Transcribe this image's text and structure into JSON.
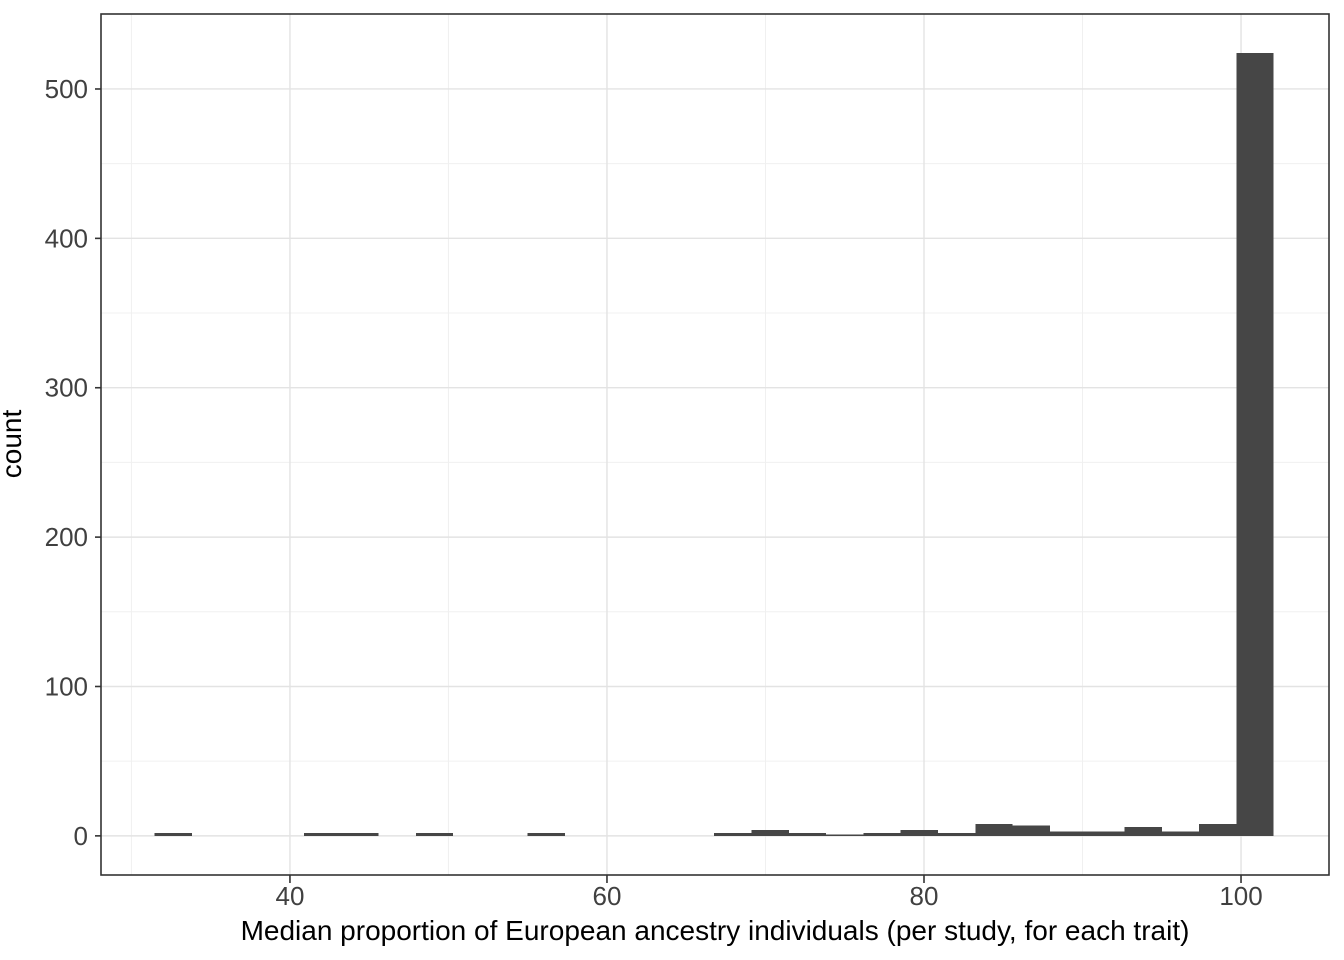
{
  "figure": {
    "background": "#ffffff"
  },
  "chart_data": {
    "type": "bar",
    "subtype": "histogram",
    "title": "",
    "xlabel": "Median proportion of European ancestry individuals (per study, for each trait)",
    "ylabel": "count",
    "x_domain": [
      28.08,
      105.55
    ],
    "y_domain": [
      -26.2,
      550.2
    ],
    "x_ticks": [
      40,
      60,
      80,
      100
    ],
    "x_tick_labels": [
      "40",
      "60",
      "80",
      "100"
    ],
    "x_minor_ticks": [
      30,
      50,
      70,
      90
    ],
    "y_ticks": [
      0,
      100,
      200,
      300,
      400,
      500
    ],
    "y_tick_labels": [
      "0",
      "100",
      "200",
      "300",
      "400",
      "500"
    ],
    "y_minor_ticks": [
      50,
      150,
      250,
      350,
      450
    ],
    "grid": true,
    "legend": false,
    "bins": {
      "start": 31.47,
      "width": 2.353,
      "counts": [
        2,
        0,
        0,
        0,
        2,
        2,
        0,
        2,
        0,
        0,
        2,
        0,
        0,
        0,
        0,
        2,
        4,
        2,
        1,
        2,
        4,
        2,
        8,
        7,
        3,
        3,
        6,
        3,
        8,
        524
      ]
    },
    "max_count": 524,
    "colors": {
      "bar_fill": "#464646",
      "panel_border": "#333333",
      "grid_major": "#e3e3e3",
      "grid_minor": "#f0f0f0",
      "tick_mark": "#333333",
      "tick_text": "#404040",
      "axis_title": "#000000",
      "panel_bg": "#ffffff"
    }
  }
}
